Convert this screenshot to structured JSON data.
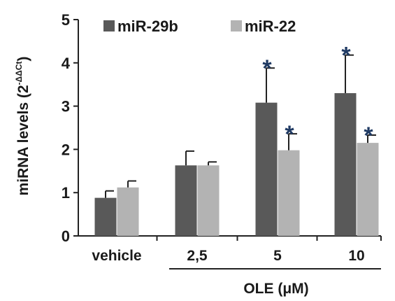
{
  "chart_data": {
    "type": "bar",
    "categories": [
      "vehicle",
      "2,5",
      "5",
      "10"
    ],
    "series": [
      {
        "name": "miR-29b",
        "color": "#595959",
        "values": [
          0.88,
          1.63,
          3.08,
          3.3
        ],
        "errors": [
          0.16,
          0.33,
          0.8,
          0.88
        ],
        "significant": [
          false,
          false,
          true,
          true
        ]
      },
      {
        "name": "miR-22",
        "color": "#b3b3b3",
        "values": [
          1.12,
          1.63,
          1.98,
          2.15
        ],
        "errors": [
          0.15,
          0.08,
          0.38,
          0.18
        ],
        "significant": [
          false,
          false,
          true,
          true
        ]
      }
    ],
    "ylabel": "miRNA levels (2",
    "ylabel_superscript": "-ΔΔCt",
    "ylabel_close": ")",
    "ylim": [
      0,
      5
    ],
    "yticks": [
      0,
      1,
      2,
      3,
      4,
      5
    ],
    "group_label": "OLE (μM)",
    "group_categories": [
      "2,5",
      "5",
      "10"
    ],
    "significance_marker": "*",
    "significance_color": "#1f3a63",
    "grid": false,
    "legend_position": "top-left"
  }
}
